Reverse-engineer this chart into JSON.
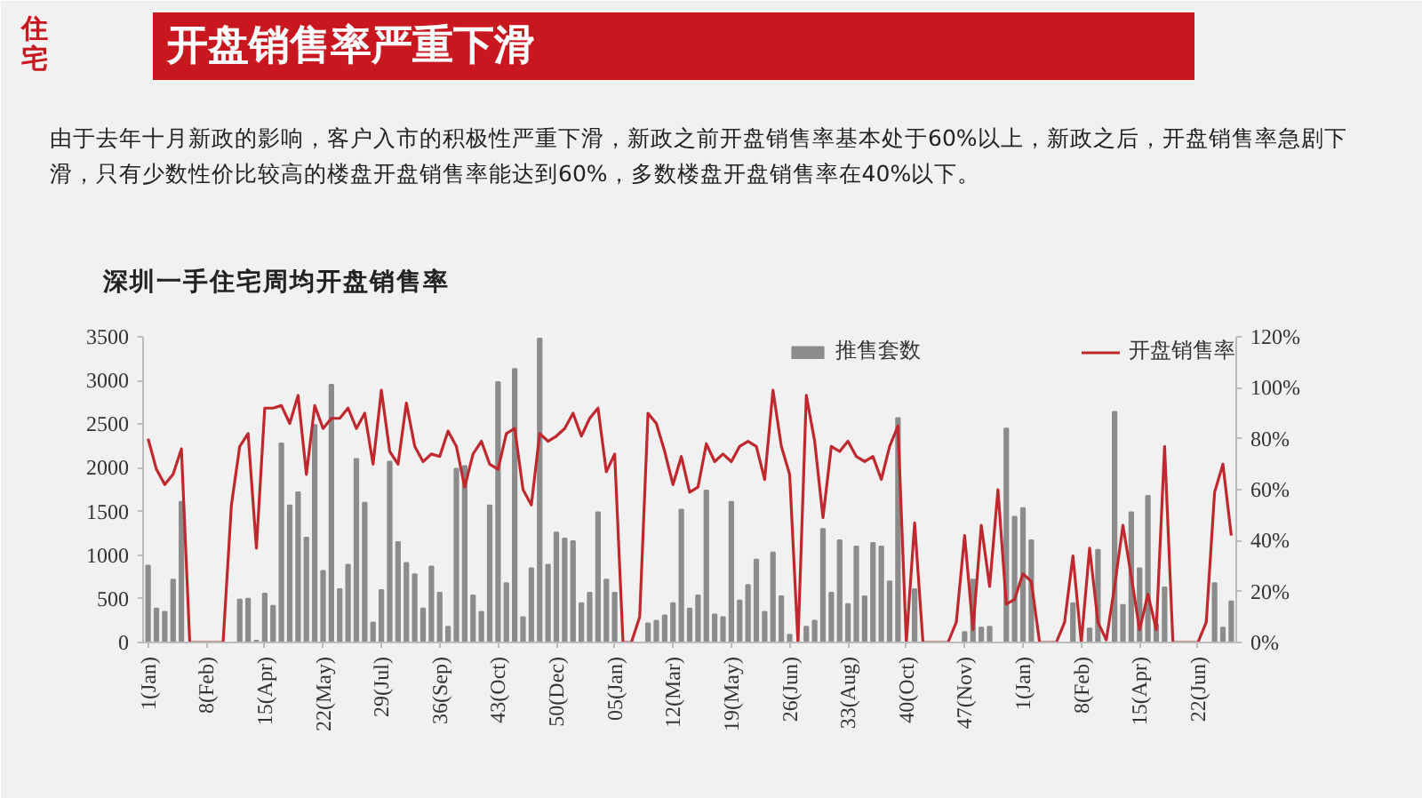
{
  "chart_data": {
    "type": "bar",
    "title": "深圳一手住宅周均开盘销售率",
    "subtitle": "由于去年十月新政的影响，客户入市的积极性严重下滑，新政之前开盘销售率基本处于60%以上，新政之后，开盘销售率急剧下滑，只有少数性价比较高的楼盘开盘销售率能达到60%，多数楼盘开盘销售率在40%以下。",
    "annotations": [
      "住宅",
      "开盘销售率严重下滑"
    ],
    "categories": [
      "1(Jan)",
      null,
      null,
      null,
      null,
      null,
      null,
      "8(Feb)",
      null,
      null,
      null,
      null,
      null,
      null,
      "15(Apr)",
      null,
      null,
      null,
      null,
      null,
      null,
      "22(May)",
      null,
      null,
      null,
      null,
      null,
      null,
      "29(Jul)",
      null,
      null,
      null,
      null,
      null,
      null,
      "36(Sep)",
      null,
      null,
      null,
      null,
      null,
      null,
      "43(Oct)",
      null,
      null,
      null,
      null,
      null,
      null,
      "50(Dec)",
      null,
      null,
      null,
      null,
      null,
      null,
      "05(Jan)",
      null,
      null,
      null,
      null,
      null,
      null,
      "12(Mar)",
      null,
      null,
      null,
      null,
      null,
      null,
      "19(May)",
      null,
      null,
      null,
      null,
      null,
      null,
      "26(Jun)",
      null,
      null,
      null,
      null,
      null,
      null,
      "33(Aug)",
      null,
      null,
      null,
      null,
      null,
      null,
      "40(Oct)",
      null,
      null,
      null,
      null,
      null,
      null,
      "47(Nov)",
      null,
      null,
      null,
      null,
      null,
      null,
      "1(Jan)",
      null,
      null,
      null,
      null,
      null,
      null,
      "8(Feb)",
      null,
      null,
      null,
      null,
      null,
      null,
      "15(Apr)",
      null,
      null,
      null,
      null,
      null,
      null,
      "22(Jun)",
      null,
      null,
      null,
      null
    ],
    "series": [
      {
        "name": "推售套数",
        "color": "#8c8c8c",
        "values": [
          880,
          390,
          350,
          720,
          1610,
          0,
          0,
          0,
          0,
          0,
          0,
          490,
          500,
          20,
          560,
          420,
          2280,
          1570,
          1720,
          1200,
          2490,
          820,
          2950,
          610,
          890,
          2100,
          1600,
          230,
          600,
          2070,
          1150,
          910,
          780,
          390,
          870,
          570,
          180,
          1990,
          2020,
          540,
          350,
          1570,
          2980,
          680,
          3130,
          290,
          850,
          3480,
          890,
          1260,
          1190,
          1160,
          450,
          570,
          1490,
          720,
          570,
          0,
          0,
          0,
          220,
          250,
          310,
          450,
          1520,
          390,
          540,
          1740,
          320,
          290,
          1610,
          480,
          660,
          950,
          350,
          1030,
          530,
          90,
          0,
          180,
          250,
          1300,
          570,
          1170,
          440,
          1100,
          530,
          1140,
          1100,
          700,
          2570,
          0,
          610,
          0,
          0,
          0,
          0,
          0,
          120,
          720,
          170,
          180,
          0,
          2450,
          1440,
          1540,
          1170,
          0,
          0,
          0,
          0,
          450,
          0,
          160,
          1060,
          0,
          2640,
          430,
          1490,
          850,
          1680,
          210,
          630,
          0,
          0,
          0,
          0,
          0,
          680,
          170,
          470
        ]
      },
      {
        "name": "开盘销售率",
        "type": "line",
        "axis": "y2",
        "color": "#c0282d",
        "values": [
          80,
          68,
          62,
          66,
          76,
          0,
          0,
          0,
          0,
          0,
          54,
          77,
          82,
          37,
          92,
          92,
          93,
          86,
          97,
          66,
          93,
          84,
          88,
          88,
          92,
          84,
          90,
          70,
          99,
          75,
          70,
          94,
          77,
          71,
          74,
          73,
          83,
          77,
          61,
          74,
          79,
          70,
          68,
          82,
          84,
          60,
          54,
          82,
          79,
          81,
          84,
          90,
          81,
          88,
          92,
          67,
          74,
          0,
          0,
          10,
          90,
          86,
          75,
          62,
          73,
          59,
          61,
          78,
          71,
          74,
          71,
          77,
          79,
          77,
          64,
          99,
          77,
          66,
          0,
          97,
          79,
          49,
          77,
          75,
          79,
          73,
          71,
          73,
          64,
          77,
          85,
          0,
          47,
          0,
          0,
          0,
          0,
          8,
          42,
          5,
          46,
          22,
          60,
          15,
          17,
          27,
          24,
          0,
          0,
          0,
          8,
          34,
          0,
          37,
          8,
          1,
          22,
          46,
          26,
          5,
          19,
          5,
          77,
          0,
          0,
          0,
          0,
          8,
          59,
          70,
          42
        ]
      }
    ],
    "ylim": [
      0,
      3500
    ],
    "yticks": [
      0,
      500,
      1000,
      1500,
      2000,
      2500,
      3000,
      3500
    ],
    "y2lim": [
      0,
      120
    ],
    "y2ticks": [
      {
        "value": 0,
        "label": "0%"
      },
      {
        "value": 20,
        "label": "20%"
      },
      {
        "value": 40,
        "label": "40%"
      },
      {
        "value": 60,
        "label": "60%"
      },
      {
        "value": 80,
        "label": "80%"
      },
      {
        "value": 100,
        "label": "100%"
      },
      {
        "value": 120,
        "label": "120%"
      }
    ],
    "legend": "top right"
  }
}
